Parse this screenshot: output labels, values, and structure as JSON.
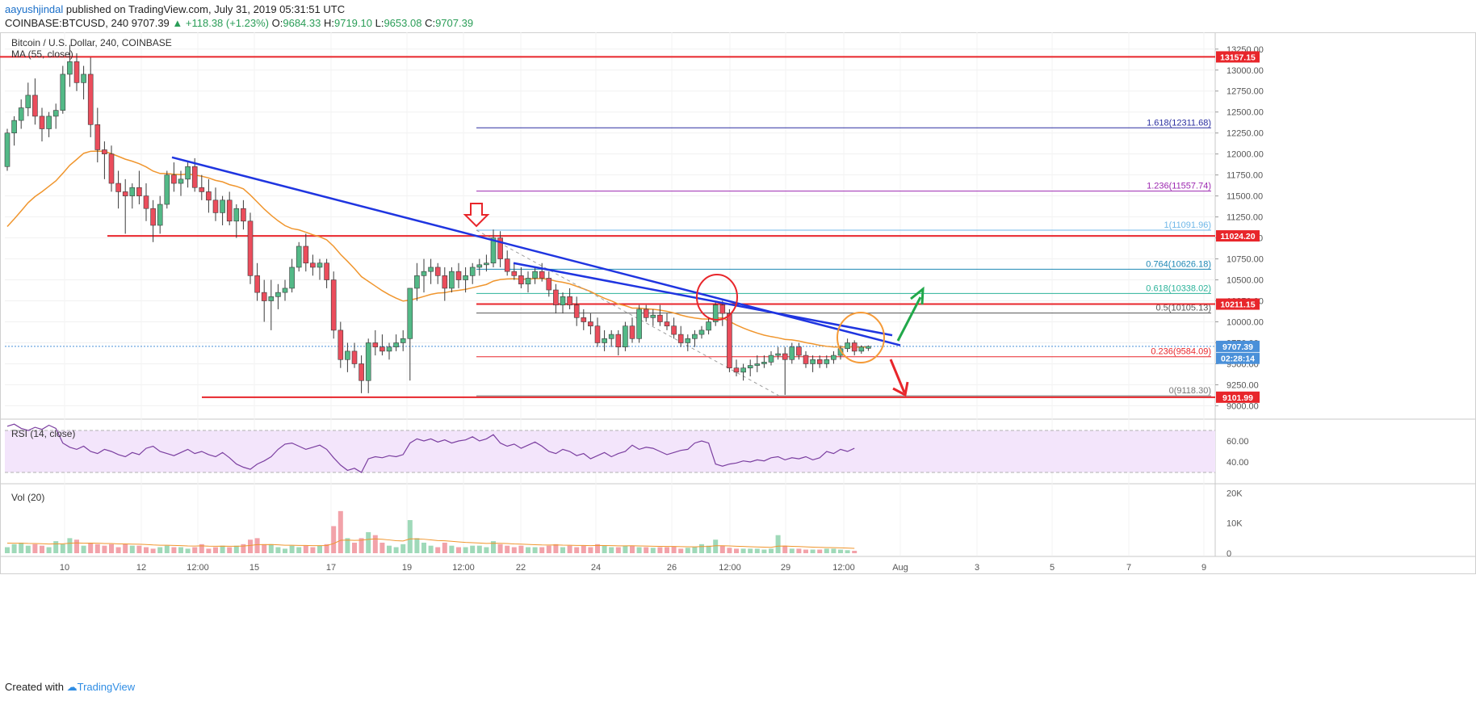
{
  "header": {
    "author": "aayushjindal",
    "published": " published on TradingView.com, July 31, 2019 05:31:51 UTC",
    "symbol": "COINBASE:BTCUSD, 240",
    "last": "9707.39",
    "change": "▲ +118.38 (+1.23%)",
    "o_label": "O:",
    "o": "9684.33",
    "h_label": "H:",
    "h": "9719.10",
    "l_label": "L:",
    "l": "9653.08",
    "c_label": "C:",
    "c": "9707.39"
  },
  "legend": {
    "title": "Bitcoin / U.S. Dollar, 240, COINBASE",
    "ma": "MA (55, close)",
    "rsi": "RSI (14, close)",
    "vol": "Vol (20)"
  },
  "footer": {
    "created_with": "Created with",
    "brand": "TradingView"
  },
  "colors": {
    "up": "#53b987",
    "down": "#eb4d5c",
    "ma": "#f0962e",
    "trend": "#1f35e0",
    "support": "#e8262b",
    "rsi_line": "#7b3fa0",
    "rsi_bg": "#f3e5fb",
    "arrow_up": "#21a84a",
    "circle": "#f59a37"
  },
  "chart_data": [
    {
      "type": "candlestick",
      "title": "Bitcoin / U.S. Dollar, 240, COINBASE",
      "y_ticks": [
        "13250.00",
        "13000.00",
        "12750.00",
        "12500.00",
        "12250.00",
        "12000.00",
        "11750.00",
        "11500.00",
        "11250.00",
        "11000.00",
        "10750.00",
        "10500.00",
        "10250.00",
        "10000.00",
        "9750.00",
        "9500.00",
        "9250.00",
        "9000.00"
      ],
      "ylim": [
        8850,
        13450
      ],
      "x_ticks": [
        "10",
        "12",
        "12:00",
        "15",
        "17",
        "19",
        "12:00",
        "22",
        "24",
        "26",
        "12:00",
        "29",
        "12:00",
        "Aug",
        "3",
        "5",
        "7",
        "9"
      ],
      "price_tags": [
        {
          "label": "13157.15",
          "value": 13157.15,
          "color": "#e8262b"
        },
        {
          "label": "11024.20",
          "value": 11024.2,
          "color": "#e8262b"
        },
        {
          "label": "10211.15",
          "value": 10211.15,
          "color": "#e8262b"
        },
        {
          "label": "9707.39",
          "value": 9707.39,
          "color": "#4a90d9"
        },
        {
          "label": "02:28:14",
          "value": 9565,
          "color": "#4a90d9"
        },
        {
          "label": "9101.99",
          "value": 9101.99,
          "color": "#e8262b"
        }
      ],
      "fib_levels": [
        {
          "label": "1.618(12311.68)",
          "value": 12311.68,
          "color": "#2b2fa0"
        },
        {
          "label": "1.236(11557.74)",
          "value": 11557.74,
          "color": "#9c27b0"
        },
        {
          "label": "1(11091.96)",
          "value": 11091.96,
          "color": "#6fb7e8"
        },
        {
          "label": "0.764(10626.18)",
          "value": 10626.18,
          "color": "#1e88b5"
        },
        {
          "label": "0.618(10338.02)",
          "value": 10338.02,
          "color": "#2bb39a"
        },
        {
          "label": "0.5(10105.13)",
          "value": 10105.13,
          "color": "#555555"
        },
        {
          "label": "0.236(9584.09)",
          "value": 9584.09,
          "color": "#e8262b"
        },
        {
          "label": "0(9118.30)",
          "value": 9118.3,
          "color": "#777777"
        }
      ],
      "support_resistance": [
        13157.15,
        11024.2,
        10211.15,
        9101.99
      ],
      "candles": [
        [
          11850,
          12300,
          11800,
          12250
        ],
        [
          12250,
          12450,
          12100,
          12400
        ],
        [
          12400,
          12650,
          12300,
          12550
        ],
        [
          12550,
          12850,
          12450,
          12700
        ],
        [
          12700,
          12900,
          12350,
          12450
        ],
        [
          12450,
          12550,
          12150,
          12300
        ],
        [
          12300,
          12500,
          12200,
          12450
        ],
        [
          12450,
          12600,
          12300,
          12520
        ],
        [
          12520,
          13050,
          12480,
          12950
        ],
        [
          12950,
          13300,
          12800,
          13100
        ],
        [
          13100,
          13200,
          12750,
          12850
        ],
        [
          12850,
          13050,
          12650,
          12950
        ],
        [
          12950,
          13150,
          12200,
          12350
        ],
        [
          12350,
          12550,
          11900,
          12050
        ],
        [
          12050,
          12150,
          11700,
          12000
        ],
        [
          12000,
          12100,
          11550,
          11650
        ],
        [
          11650,
          11800,
          11350,
          11550
        ],
        [
          11550,
          11700,
          11050,
          11500
        ],
        [
          11500,
          11650,
          11350,
          11600
        ],
        [
          11600,
          11800,
          11400,
          11500
        ],
        [
          11500,
          11650,
          11200,
          11350
        ],
        [
          11350,
          11450,
          10950,
          11150
        ],
        [
          11150,
          11500,
          11050,
          11400
        ],
        [
          11400,
          11800,
          11350,
          11750
        ],
        [
          11750,
          11900,
          11550,
          11650
        ],
        [
          11650,
          11800,
          11500,
          11700
        ],
        [
          11700,
          11900,
          11600,
          11850
        ],
        [
          11850,
          11950,
          11550,
          11600
        ],
        [
          11600,
          11750,
          11450,
          11550
        ],
        [
          11550,
          11700,
          11300,
          11450
        ],
        [
          11450,
          11600,
          11200,
          11300
        ],
        [
          11300,
          11500,
          11150,
          11450
        ],
        [
          11450,
          11550,
          11150,
          11200
        ],
        [
          11200,
          11400,
          11000,
          11350
        ],
        [
          11350,
          11450,
          11100,
          11200
        ],
        [
          11200,
          11300,
          10450,
          10550
        ],
        [
          10550,
          10700,
          10250,
          10350
        ],
        [
          10350,
          10500,
          10000,
          10250
        ],
        [
          10250,
          10500,
          9900,
          10300
        ],
        [
          10300,
          10450,
          10150,
          10350
        ],
        [
          10350,
          10500,
          10250,
          10400
        ],
        [
          10400,
          10750,
          10350,
          10650
        ],
        [
          10650,
          10950,
          10600,
          10900
        ],
        [
          10900,
          11050,
          10600,
          10700
        ],
        [
          10700,
          10800,
          10550,
          10650
        ],
        [
          10650,
          10750,
          10500,
          10700
        ],
        [
          10700,
          10750,
          10400,
          10500
        ],
        [
          10500,
          10600,
          9800,
          9900
        ],
        [
          9900,
          10000,
          9450,
          9550
        ],
        [
          9550,
          9750,
          9400,
          9650
        ],
        [
          9650,
          9750,
          9450,
          9500
        ],
        [
          9500,
          9600,
          9150,
          9300
        ],
        [
          9300,
          9800,
          9150,
          9750
        ],
        [
          9750,
          9900,
          9600,
          9700
        ],
        [
          9700,
          9850,
          9600,
          9650
        ],
        [
          9650,
          9750,
          9550,
          9700
        ],
        [
          9700,
          9850,
          9650,
          9750
        ],
        [
          9750,
          9900,
          9650,
          9800
        ],
        [
          9800,
          10400,
          9300,
          10400
        ],
        [
          10400,
          10700,
          10250,
          10550
        ],
        [
          10550,
          10750,
          10350,
          10600
        ],
        [
          10600,
          10750,
          10450,
          10650
        ],
        [
          10650,
          10700,
          10450,
          10550
        ],
        [
          10550,
          10650,
          10250,
          10400
        ],
        [
          10400,
          10650,
          10350,
          10600
        ],
        [
          10600,
          10700,
          10400,
          10500
        ],
        [
          10500,
          10650,
          10350,
          10550
        ],
        [
          10550,
          10700,
          10450,
          10650
        ],
        [
          10650,
          10750,
          10550,
          10680
        ],
        [
          10680,
          10800,
          10600,
          10700
        ],
        [
          10700,
          11100,
          10650,
          11000
        ],
        [
          11000,
          11080,
          10650,
          10750
        ],
        [
          10750,
          10850,
          10550,
          10600
        ],
        [
          10600,
          10700,
          10500,
          10550
        ],
        [
          10550,
          10650,
          10400,
          10450
        ],
        [
          10450,
          10600,
          10350,
          10520
        ],
        [
          10520,
          10650,
          10450,
          10600
        ],
        [
          10600,
          10700,
          10480,
          10520
        ],
        [
          10520,
          10600,
          10300,
          10380
        ],
        [
          10380,
          10450,
          10100,
          10200
        ],
        [
          10200,
          10350,
          10100,
          10300
        ],
        [
          10300,
          10400,
          10150,
          10200
        ],
        [
          10200,
          10300,
          9950,
          10050
        ],
        [
          10050,
          10150,
          9900,
          10000
        ],
        [
          10000,
          10100,
          9850,
          9950
        ],
        [
          9950,
          10050,
          9700,
          9750
        ],
        [
          9750,
          9900,
          9650,
          9800
        ],
        [
          9800,
          9900,
          9700,
          9850
        ],
        [
          9850,
          9900,
          9600,
          9700
        ],
        [
          9700,
          10000,
          9650,
          9950
        ],
        [
          9950,
          10050,
          9750,
          9800
        ],
        [
          9800,
          10200,
          9750,
          10150
        ],
        [
          10150,
          10200,
          10000,
          10050
        ],
        [
          10050,
          10150,
          9950,
          10080
        ],
        [
          10080,
          10200,
          9950,
          10000
        ],
        [
          10000,
          10100,
          9900,
          9950
        ],
        [
          9950,
          10050,
          9800,
          9850
        ],
        [
          9850,
          9950,
          9700,
          9750
        ],
        [
          9750,
          9850,
          9650,
          9800
        ],
        [
          9800,
          9900,
          9700,
          9850
        ],
        [
          9850,
          9950,
          9800,
          9900
        ],
        [
          9900,
          10050,
          9850,
          10000
        ],
        [
          10000,
          10250,
          9950,
          10200
        ],
        [
          10200,
          10250,
          9950,
          10100
        ],
        [
          10100,
          10150,
          9400,
          9450
        ],
        [
          9450,
          9550,
          9350,
          9400
        ],
        [
          9400,
          9500,
          9300,
          9450
        ],
        [
          9450,
          9550,
          9350,
          9480
        ],
        [
          9480,
          9600,
          9400,
          9500
        ],
        [
          9500,
          9600,
          9450,
          9520
        ],
        [
          9520,
          9650,
          9480,
          9600
        ],
        [
          9600,
          9700,
          9550,
          9620
        ],
        [
          9620,
          9700,
          9130,
          9550
        ],
        [
          9550,
          9750,
          9500,
          9700
        ],
        [
          9700,
          9750,
          9550,
          9600
        ],
        [
          9600,
          9650,
          9450,
          9500
        ],
        [
          9500,
          9600,
          9400,
          9550
        ],
        [
          9550,
          9600,
          9450,
          9500
        ],
        [
          9500,
          9600,
          9450,
          9550
        ],
        [
          9550,
          9650,
          9500,
          9600
        ],
        [
          9600,
          9720,
          9550,
          9680
        ],
        [
          9680,
          9800,
          9640,
          9750
        ],
        [
          9750,
          9780,
          9600,
          9650
        ],
        [
          9650,
          9720,
          9620,
          9700
        ],
        [
          9684.33,
          9719.1,
          9653.08,
          9707.39
        ]
      ],
      "ma55_start": 11050
    },
    {
      "type": "line",
      "title": "RSI (14, close)",
      "y_ticks": [
        "60.00",
        "40.00"
      ],
      "ylim": [
        20,
        80
      ],
      "series": [
        {
          "name": "RSI (14, close)",
          "values": [
            74,
            76,
            72,
            70,
            73,
            71,
            75,
            72,
            58,
            54,
            52,
            55,
            50,
            48,
            52,
            50,
            47,
            45,
            49,
            47,
            53,
            55,
            50,
            48,
            46,
            49,
            52,
            48,
            50,
            47,
            45,
            49,
            44,
            38,
            35,
            33,
            38,
            41,
            45,
            52,
            57,
            58,
            55,
            52,
            54,
            56,
            52,
            44,
            37,
            32,
            34,
            30,
            43,
            45,
            44,
            46,
            45,
            47,
            58,
            62,
            60,
            62,
            59,
            61,
            58,
            60,
            61,
            64,
            60,
            62,
            66,
            58,
            55,
            57,
            53,
            56,
            59,
            55,
            50,
            48,
            52,
            50,
            46,
            48,
            43,
            46,
            49,
            45,
            48,
            50,
            56,
            52,
            54,
            53,
            50,
            47,
            49,
            51,
            52,
            58,
            60,
            58,
            38,
            36,
            38,
            39,
            41,
            40,
            42,
            41,
            44,
            45,
            42,
            44,
            43,
            45,
            42,
            44,
            50,
            48,
            52,
            50,
            53
          ]
        }
      ]
    },
    {
      "type": "bar",
      "title": "Vol (20)",
      "y_ticks": [
        "20K",
        "10K",
        "0"
      ],
      "ylim": [
        0,
        22000
      ],
      "values": [
        2000,
        3000,
        3500,
        2500,
        3000,
        2500,
        2000,
        4000,
        3000,
        5000,
        4500,
        2500,
        3500,
        3000,
        2500,
        3000,
        2000,
        3000,
        2500,
        2500,
        2000,
        1500,
        2000,
        2500,
        2000,
        2000,
        1500,
        2000,
        3000,
        1500,
        2000,
        2500,
        2000,
        2500,
        3000,
        4500,
        5000,
        3000,
        3000,
        2000,
        1500,
        2500,
        2000,
        2500,
        2000,
        2500,
        3000,
        9000,
        14000,
        5000,
        3500,
        5000,
        7000,
        6000,
        3500,
        2500,
        2000,
        3000,
        11000,
        5000,
        3500,
        2500,
        2000,
        3500,
        2500,
        2000,
        2000,
        2500,
        2500,
        2000,
        4000,
        3000,
        2500,
        2000,
        2500,
        2000,
        2000,
        2000,
        2500,
        3000,
        2000,
        2500,
        2000,
        2500,
        2000,
        3000,
        2500,
        2000,
        2000,
        2500,
        2500,
        2000,
        2000,
        1800,
        2000,
        2000,
        2200,
        1500,
        1800,
        2000,
        3000,
        2500,
        4500,
        2500,
        1800,
        1500,
        1500,
        1500,
        1500,
        1200,
        1500,
        6000,
        2500,
        1500,
        1500,
        1200,
        1200,
        1200,
        1500,
        1500,
        1200,
        1000,
        800
      ]
    }
  ]
}
